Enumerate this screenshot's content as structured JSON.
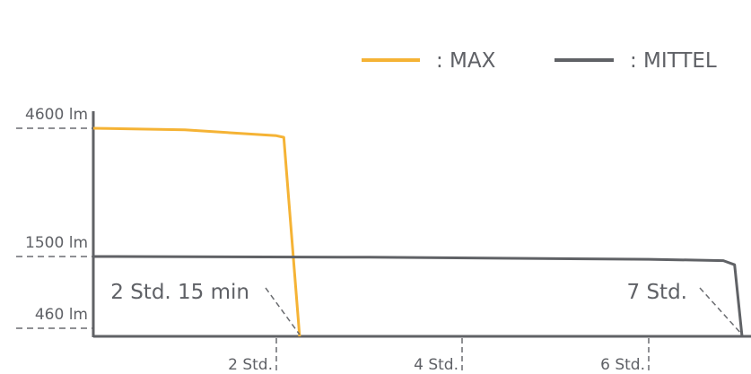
{
  "chart_data": {
    "type": "line",
    "title": "",
    "xlabel": "",
    "ylabel": "",
    "x_ticks": [
      {
        "value": 2,
        "label": "2 Std."
      },
      {
        "value": 4,
        "label": "4 Std."
      },
      {
        "value": 6,
        "label": "6 Std."
      }
    ],
    "y_ticks": [
      {
        "value": 4600,
        "label": "4600 lm"
      },
      {
        "value": 1500,
        "label": "1500 lm"
      },
      {
        "value": 460,
        "label": "460 lm"
      }
    ],
    "legend": {
      "position": "top-right"
    },
    "series": [
      {
        "name": ": MAX",
        "color": "#F5B335",
        "points": [
          [
            0,
            4600
          ],
          [
            1,
            4560
          ],
          [
            2,
            4420
          ],
          [
            2.08,
            4380
          ],
          [
            2.25,
            0
          ]
        ]
      },
      {
        "name": ": MITTEL",
        "color": "#606266",
        "points": [
          [
            0,
            1500
          ],
          [
            3,
            1490
          ],
          [
            6,
            1460
          ],
          [
            6.8,
            1440
          ],
          [
            6.92,
            1380
          ],
          [
            7,
            0
          ]
        ]
      }
    ],
    "annotations": [
      {
        "text": "2 Std. 15 min",
        "x": 2.25,
        "y": 0
      },
      {
        "text": "7 Std.",
        "x": 7,
        "y": 0
      }
    ]
  }
}
